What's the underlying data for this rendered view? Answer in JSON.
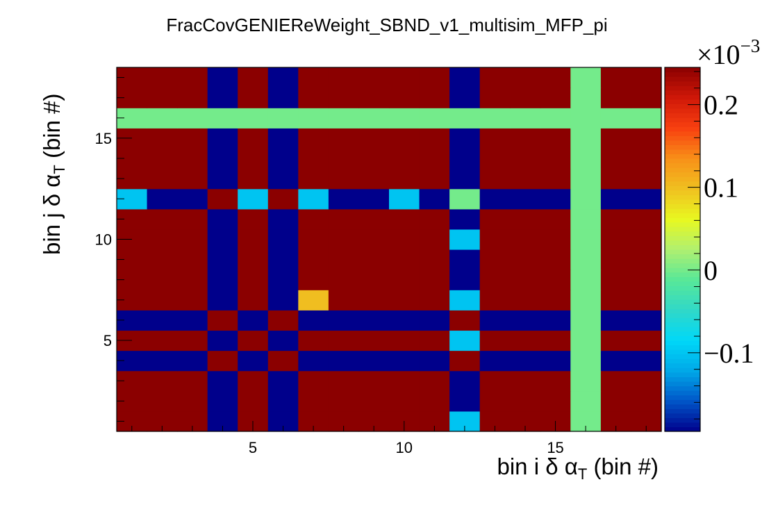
{
  "chart_data": {
    "type": "heatmap",
    "title": "FracCovGENIEReWeight_SBND_v1_multisim_MFP_pi",
    "xlabel": {
      "main": "bin i δ α",
      "sub": "T",
      "post": " (bin #)"
    },
    "ylabel": {
      "main": "bin j δ α",
      "sub": "T",
      "post": " (bin #)"
    },
    "x_range": [
      0.5,
      18.5
    ],
    "y_range": [
      0.5,
      18.5
    ],
    "x_ticks": [
      5,
      10,
      15
    ],
    "y_ticks": [
      5,
      10,
      15
    ],
    "x_tick_labels": [
      "5",
      "10",
      "15"
    ],
    "y_tick_labels": [
      "5",
      "10",
      "15"
    ],
    "z_range": [
      -0.195,
      0.245
    ],
    "z_exponent_label": "×10",
    "z_exponent_power": "−3",
    "z_ticks": [
      -0.1,
      0,
      0.1,
      0.2
    ],
    "z_tick_labels": [
      "−0.1",
      "0",
      "0.1",
      "0.2"
    ],
    "colormap": [
      "#00008b",
      "#0055c8",
      "#00a8e8",
      "#00d8f8",
      "#30d8c8",
      "#58e898",
      "#b0f070",
      "#e8f820",
      "#f0c020",
      "#f89018",
      "#f84010",
      "#d01808",
      "#8b0000"
    ],
    "bin_vector": [
      0.03,
      0.07,
      0.09,
      -0.1,
      0.03,
      -0.1,
      0.01,
      0.14,
      0.05,
      0.03,
      0.07,
      -0.005,
      0.1,
      0.08,
      0.14,
      0.0,
      0.06,
      0.08
    ],
    "values": [
      [
        0.0009,
        0.0021,
        0.0027,
        -0.003,
        0.0009,
        -0.003,
        0.0003,
        0.0042,
        0.0015,
        0.0009,
        0.0021,
        -0.0001,
        0.003,
        0.0024,
        0.0042,
        0.0,
        0.0018,
        0.0024
      ],
      [
        0.0021,
        0.0049,
        0.0063,
        -0.007,
        0.0021,
        -0.007,
        0.0007,
        0.0098,
        0.0035,
        0.0021,
        0.0049,
        -0.0004,
        0.007,
        0.0056,
        0.0098,
        0.0,
        0.0042,
        0.0056
      ],
      [
        0.0027,
        0.0063,
        0.0081,
        -0.009,
        0.0027,
        -0.009,
        0.0009,
        0.0126,
        0.0045,
        0.0027,
        0.0063,
        -0.0005,
        0.009,
        0.0072,
        0.0126,
        0.0,
        0.0054,
        0.0072
      ],
      [
        -0.003,
        -0.007,
        -0.009,
        0.01,
        -0.003,
        0.01,
        -0.001,
        -0.014,
        -0.005,
        -0.003,
        -0.007,
        0.0005,
        -0.01,
        -0.008,
        -0.014,
        0.0,
        -0.006,
        -0.008
      ],
      [
        0.0009,
        0.0021,
        0.0027,
        -0.003,
        0.0009,
        -0.003,
        0.0003,
        0.0042,
        0.0015,
        0.0009,
        0.0021,
        -0.0001,
        0.003,
        0.0024,
        0.0042,
        0.0,
        0.0018,
        0.0024
      ],
      [
        -0.003,
        -0.007,
        -0.009,
        0.01,
        -0.003,
        0.01,
        -0.001,
        -0.014,
        -0.005,
        -0.003,
        -0.007,
        0.0005,
        -0.01,
        -0.008,
        -0.014,
        0.0,
        -0.006,
        -0.008
      ],
      [
        0.0003,
        0.0007,
        0.0009,
        -0.001,
        0.0003,
        -0.001,
        0.0001,
        0.0014,
        0.0005,
        0.0003,
        0.0007,
        -0.0001,
        0.001,
        0.0008,
        0.0014,
        0.0,
        0.0006,
        0.0008
      ],
      [
        0.0042,
        0.0098,
        0.0126,
        -0.014,
        0.0042,
        -0.014,
        0.0014,
        0.0196,
        0.007,
        0.0042,
        0.0098,
        -0.0007,
        0.014,
        0.0112,
        0.0196,
        0.0,
        0.0084,
        0.0112
      ],
      [
        0.0015,
        0.0035,
        0.0045,
        -0.005,
        0.0015,
        -0.005,
        0.0005,
        0.007,
        0.0025,
        0.0015,
        0.0035,
        -0.0003,
        0.005,
        0.004,
        0.007,
        0.0,
        0.003,
        0.004
      ],
      [
        0.0009,
        0.0021,
        0.0027,
        -0.003,
        0.0009,
        -0.003,
        0.0003,
        0.0042,
        0.0015,
        0.0009,
        0.0021,
        -0.0001,
        0.003,
        0.0024,
        0.0042,
        0.0,
        0.0018,
        0.0024
      ],
      [
        0.0021,
        0.0049,
        0.0063,
        -0.007,
        0.0021,
        -0.007,
        0.0007,
        0.0098,
        0.0035,
        0.0021,
        0.0049,
        -0.0004,
        0.007,
        0.0056,
        0.0098,
        0.0,
        0.0042,
        0.0056
      ],
      [
        -0.0001,
        -0.0004,
        -0.0005,
        0.0005,
        -0.0001,
        0.0005,
        -0.0001,
        -0.0007,
        -0.0003,
        -0.0001,
        -0.0004,
        0.0,
        -0.0005,
        -0.0004,
        -0.0007,
        0.0,
        -0.0003,
        -0.0004
      ],
      [
        0.003,
        0.007,
        0.009,
        -0.01,
        0.003,
        -0.01,
        0.001,
        0.014,
        0.005,
        0.003,
        0.007,
        -0.0005,
        0.01,
        0.008,
        0.014,
        0.0,
        0.006,
        0.008
      ],
      [
        0.0024,
        0.0056,
        0.0072,
        -0.008,
        0.0024,
        -0.008,
        0.0008,
        0.0112,
        0.004,
        0.0024,
        0.0056,
        -0.0004,
        0.008,
        0.0064,
        0.0112,
        0.0,
        0.0048,
        0.0064
      ],
      [
        0.0042,
        0.0098,
        0.0126,
        -0.014,
        0.0042,
        -0.014,
        0.0014,
        0.0196,
        0.007,
        0.0042,
        0.0098,
        -0.0007,
        0.014,
        0.0112,
        0.0196,
        0.0,
        0.0084,
        0.0112
      ],
      [
        0.0,
        0.0,
        0.0,
        0.0,
        0.0,
        0.0,
        0.0,
        0.0,
        0.0,
        0.0,
        0.0,
        0.0,
        0.0,
        0.0,
        0.0,
        0.0,
        0.0,
        0.0
      ],
      [
        0.0018,
        0.0042,
        0.0054,
        -0.006,
        0.0018,
        -0.006,
        0.0006,
        0.0084,
        0.003,
        0.0018,
        0.0042,
        -0.0003,
        0.006,
        0.0048,
        0.0084,
        0.0,
        0.0036,
        0.0048
      ],
      [
        0.0024,
        0.0056,
        0.0072,
        -0.008,
        0.0024,
        -0.008,
        0.0008,
        0.0112,
        0.004,
        0.0024,
        0.0056,
        -0.0004,
        0.008,
        0.0064,
        0.0112,
        0.0,
        0.0048,
        0.0064
      ]
    ]
  }
}
